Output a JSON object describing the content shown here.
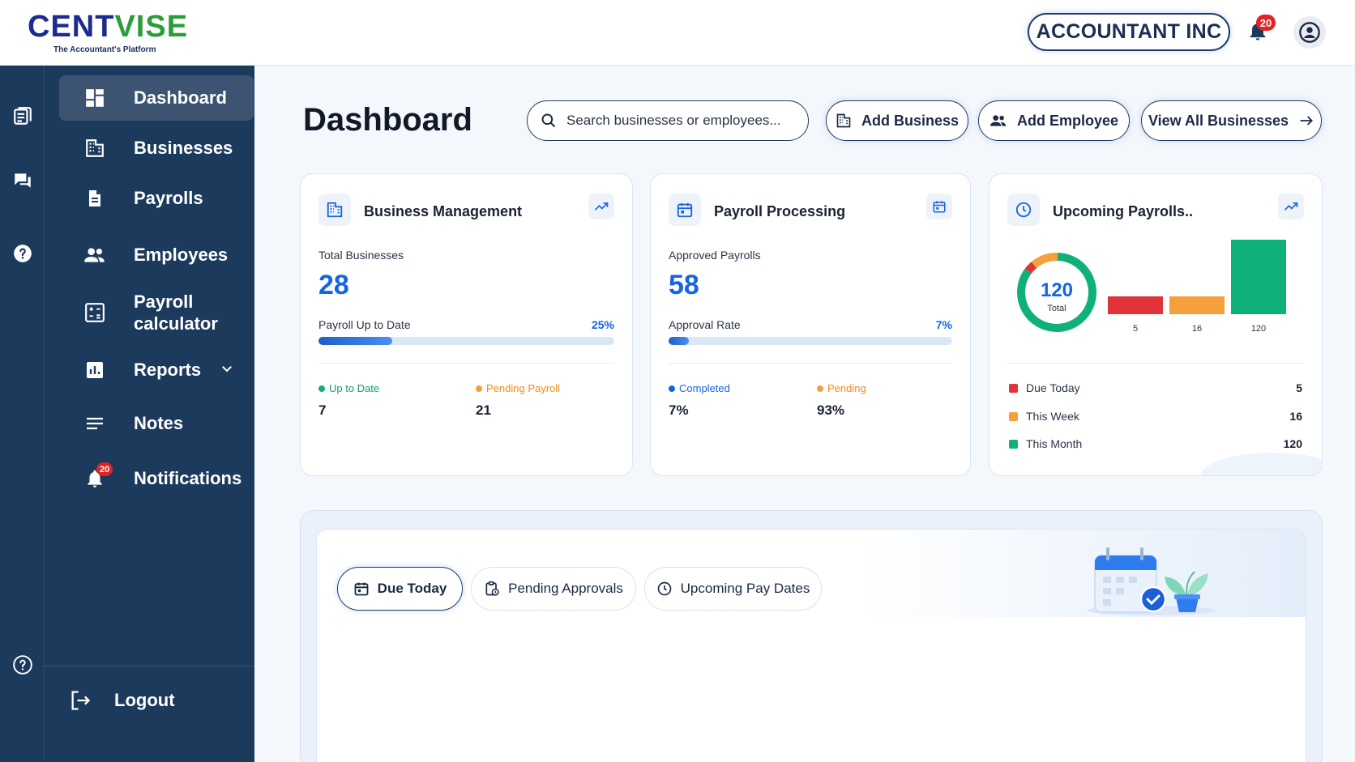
{
  "header": {
    "logo_text_1": "C",
    "logo_text_2": "ENT",
    "logo_text_3": "VISE",
    "logo_tagline": "The Accountant's Platform",
    "company": "ACCOUNTANT INC",
    "notification_count": "20"
  },
  "sidebar": {
    "items": [
      {
        "label": "Dashboard",
        "icon": "dashboard-icon"
      },
      {
        "label": "Businesses",
        "icon": "building-icon"
      },
      {
        "label": "Payrolls",
        "icon": "document-icon"
      },
      {
        "label": "Employees",
        "icon": "people-icon"
      },
      {
        "label": "Payroll calculator",
        "icon": "calculator-icon"
      },
      {
        "label": "Reports",
        "icon": "bar-chart-icon"
      },
      {
        "label": "Notes",
        "icon": "notes-icon"
      },
      {
        "label": "Notifications",
        "icon": "bell-icon"
      }
    ],
    "notifications_badge": "20",
    "logout": "Logout"
  },
  "main": {
    "title": "Dashboard",
    "search_placeholder": "Search businesses or employees...",
    "buttons": {
      "add_business": "Add Business",
      "add_employee": "Add Employee",
      "view_all": "View All Businesses"
    }
  },
  "cards": {
    "business": {
      "title": "Business Management",
      "metric_label": "Total Businesses",
      "metric_value": "28",
      "progress_label": "Payroll Up to Date",
      "progress_pct": "25%",
      "progress_fraction": 0.25,
      "legend1_label": "Up to Date",
      "legend1_value": "7",
      "legend2_label": "Pending Payroll",
      "legend2_value": "21"
    },
    "payroll": {
      "title": "Payroll Processing",
      "metric_label": "Approved Payrolls",
      "metric_value": "58",
      "progress_label": "Approval Rate",
      "progress_pct": "7%",
      "progress_fraction": 0.07,
      "legend1_label": "Completed",
      "legend1_value": "7%",
      "legend2_label": "Pending",
      "legend2_value": "93%"
    },
    "upcoming": {
      "title": "Upcoming Payrolls..",
      "donut_total": "120",
      "donut_label": "Total",
      "rows": [
        {
          "label": "Due Today",
          "value": "5",
          "color": "#e0343a"
        },
        {
          "label": "This Week",
          "value": "16",
          "color": "#f5a03a"
        },
        {
          "label": "This Month",
          "value": "120",
          "color": "#10b07a"
        }
      ]
    }
  },
  "chart_data": {
    "type": "bar",
    "categories": [
      "Due Today",
      "This Week",
      "This Month"
    ],
    "values": [
      5,
      16,
      120
    ],
    "tick_labels": [
      "5",
      "16",
      "120"
    ],
    "colors": [
      "#e0343a",
      "#f5a03a",
      "#10b07a"
    ],
    "donut": {
      "total": 120,
      "label": "Total"
    }
  },
  "tabs": [
    {
      "label": "Due Today",
      "icon": "calendar-icon",
      "active": true
    },
    {
      "label": "Pending Approvals",
      "icon": "clipboard-icon",
      "active": false
    },
    {
      "label": "Upcoming Pay Dates",
      "icon": "clock-icon",
      "active": false
    }
  ],
  "colors": {
    "sidebar": "#1c3a5c",
    "accent_blue": "#1565e0",
    "green": "#10b07a",
    "orange": "#f5a03a",
    "red": "#e0343a"
  }
}
